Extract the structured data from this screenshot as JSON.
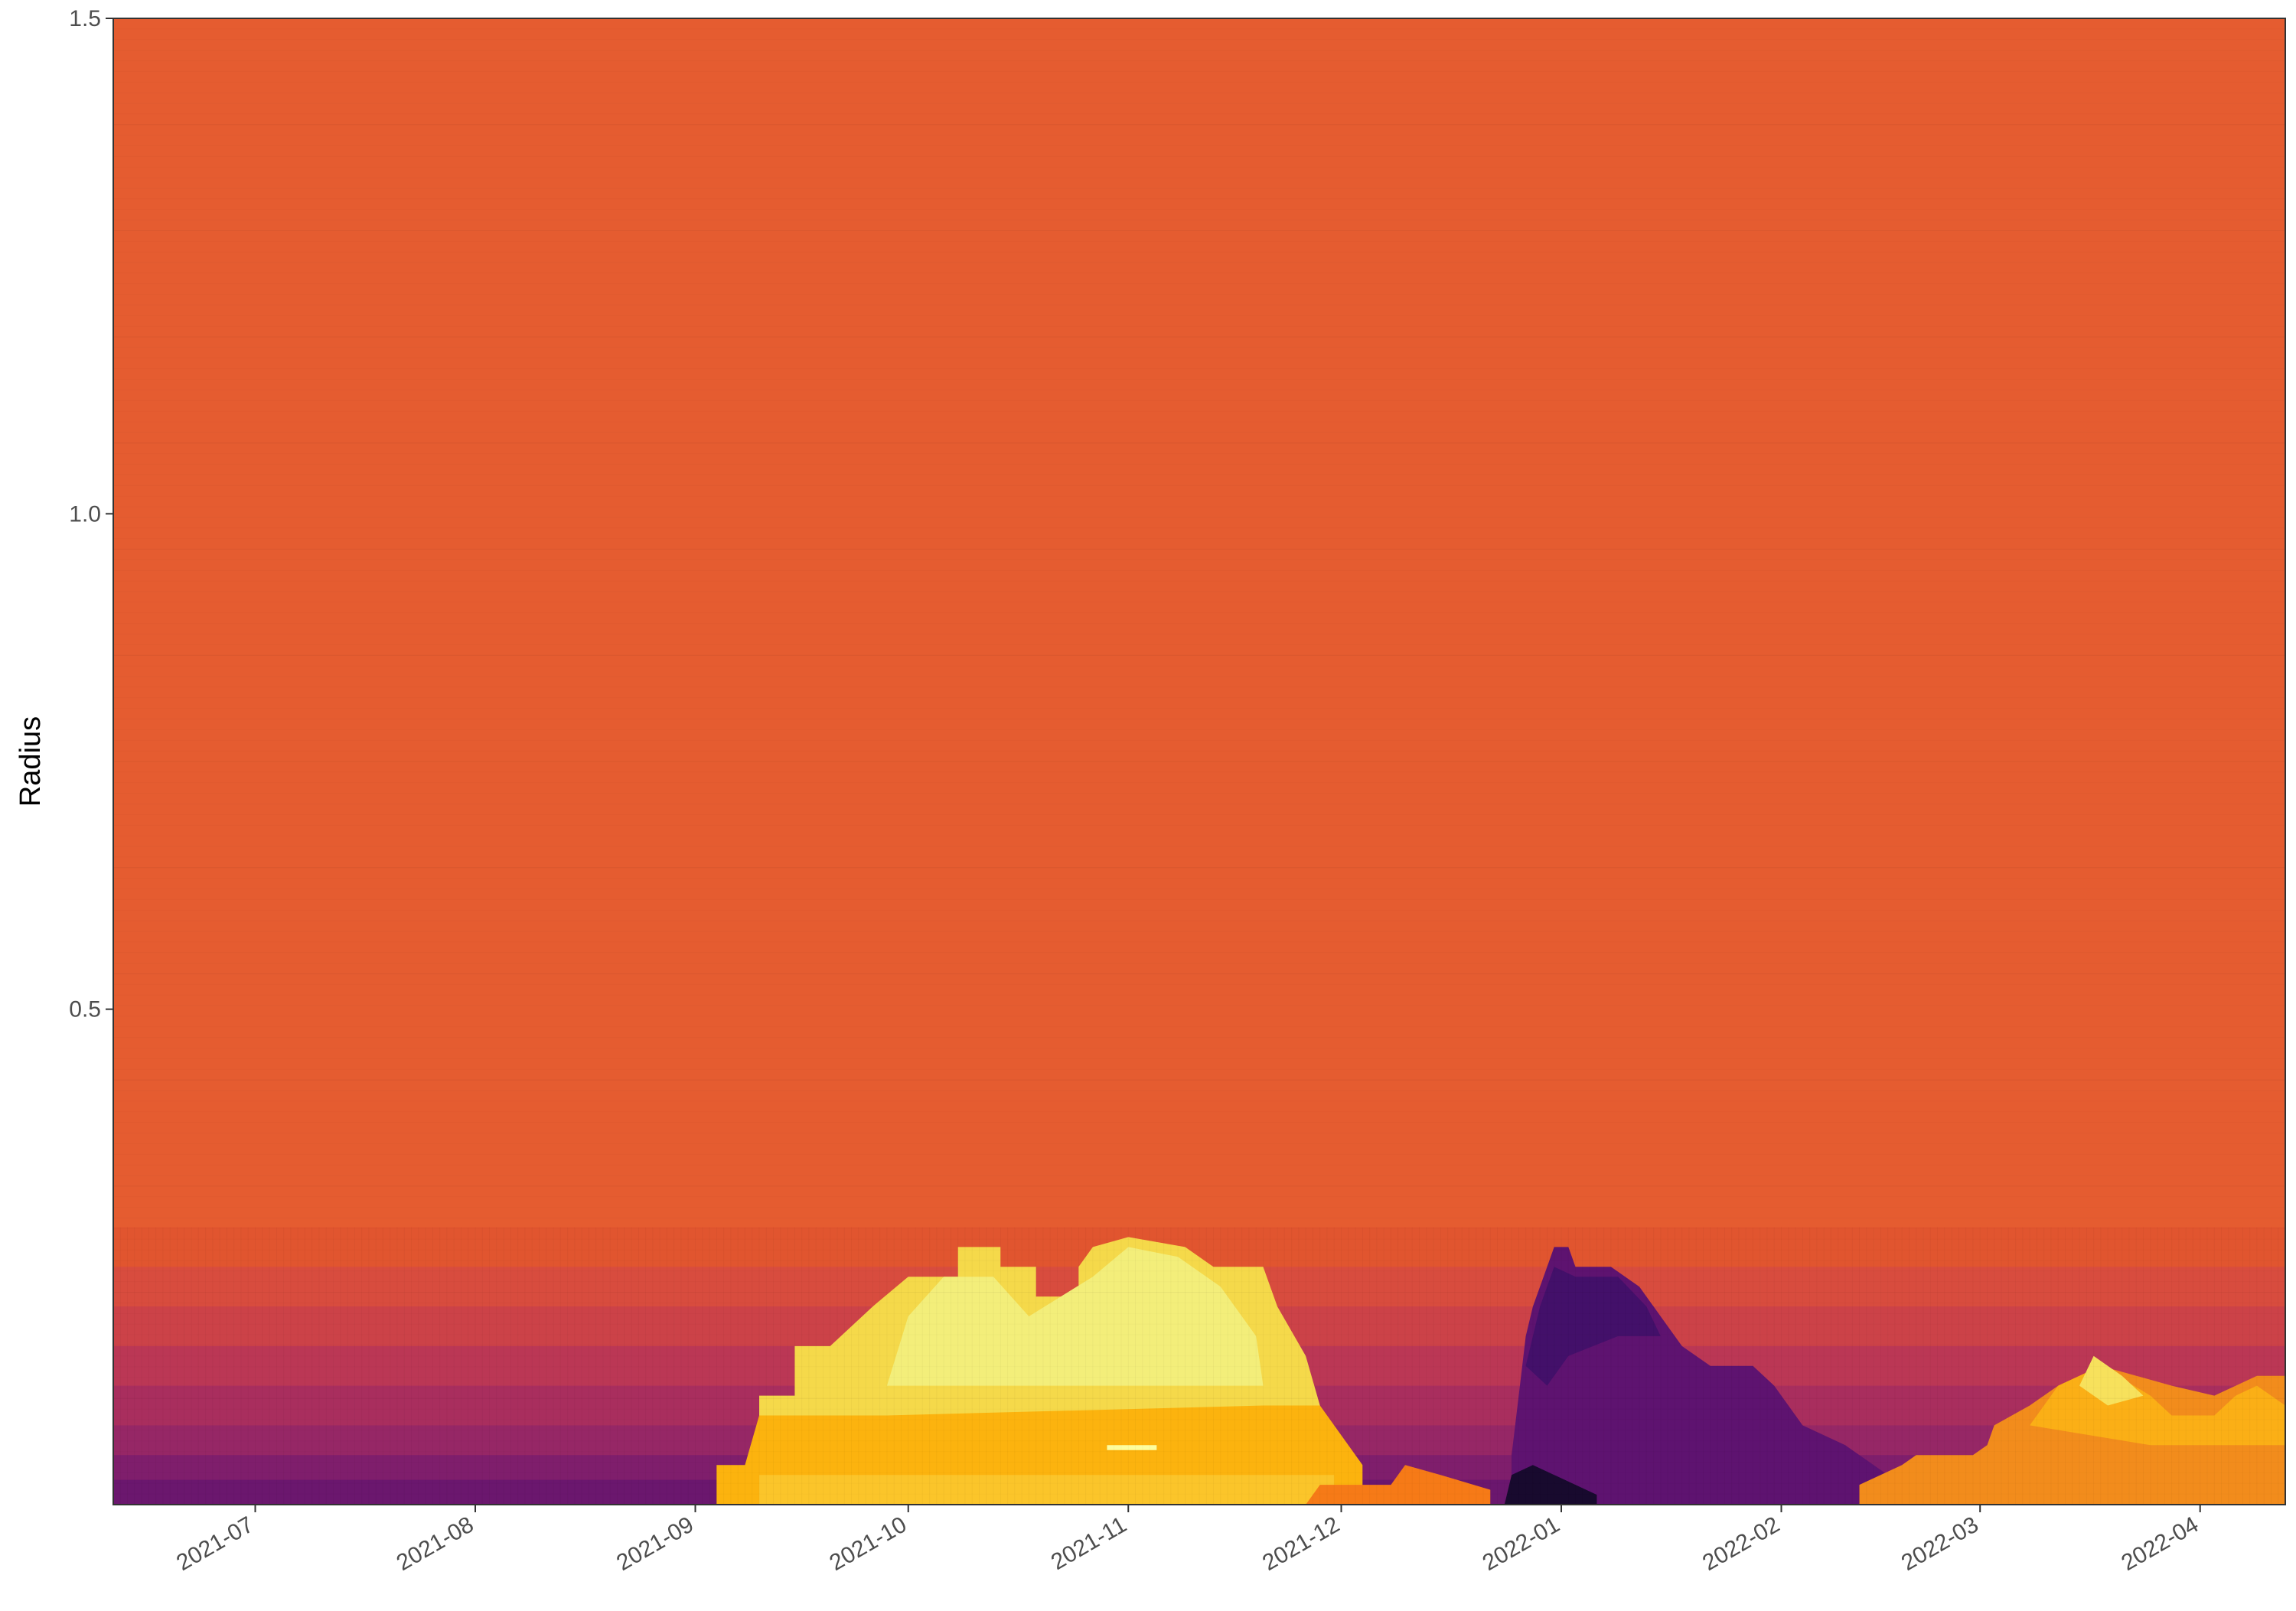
{
  "chart_data": {
    "type": "heatmap",
    "title": "",
    "xlabel": "",
    "ylabel": "Radius",
    "x_ticks": [
      "2021-07",
      "2021-08",
      "2021-09",
      "2021-10",
      "2021-11",
      "2021-12",
      "2022-01",
      "2022-02",
      "2022-03",
      "2022-04"
    ],
    "y_ticks": [
      "0.5",
      "1.0",
      "1.5"
    ],
    "xlim": [
      "2021-06-11",
      "2022-04-13"
    ],
    "ylim": [
      0.0,
      1.5
    ],
    "grid": false,
    "legend": "none",
    "palette": "inferno",
    "background_color": "#e55c30",
    "bands": [
      {
        "y_top": 0.28,
        "color": "#e1552f"
      },
      {
        "y_top": 0.24,
        "color": "#d84c3e"
      },
      {
        "y_top": 0.2,
        "color": "#cc4248"
      },
      {
        "y_top": 0.16,
        "color": "#bb3755"
      },
      {
        "y_top": 0.12,
        "color": "#a92e5e"
      },
      {
        "y_top": 0.08,
        "color": "#962766"
      },
      {
        "y_top": 0.05,
        "color": "#7f1e6c"
      },
      {
        "y_top": 0.025,
        "color": "#6b176e"
      }
    ],
    "blobs": [
      {
        "name": "autumn",
        "layers": [
          {
            "color": "#f5d94a",
            "points": [
              [
                "2021-09-10",
                0.0
              ],
              [
                "2021-09-10",
                0.11
              ],
              [
                "2021-09-15",
                0.11
              ],
              [
                "2021-09-15",
                0.16
              ],
              [
                "2021-09-20",
                0.16
              ],
              [
                "2021-09-26",
                0.2
              ],
              [
                "2021-10-01",
                0.23
              ],
              [
                "2021-10-08",
                0.23
              ],
              [
                "2021-10-08",
                0.26
              ],
              [
                "2021-10-14",
                0.26
              ],
              [
                "2021-10-14",
                0.24
              ],
              [
                "2021-10-19",
                0.24
              ],
              [
                "2021-10-19",
                0.21
              ],
              [
                "2021-10-25",
                0.21
              ],
              [
                "2021-10-25",
                0.24
              ],
              [
                "2021-10-27",
                0.26
              ],
              [
                "2021-11-01",
                0.27
              ],
              [
                "2021-11-09",
                0.26
              ],
              [
                "2021-11-13",
                0.24
              ],
              [
                "2021-11-20",
                0.24
              ],
              [
                "2021-11-22",
                0.2
              ],
              [
                "2021-11-26",
                0.15
              ],
              [
                "2021-11-28",
                0.1
              ],
              [
                "2021-11-28",
                0.0
              ]
            ]
          },
          {
            "color": "#f3ee7a",
            "points": [
              [
                "2021-09-28",
                0.12
              ],
              [
                "2021-10-01",
                0.19
              ],
              [
                "2021-10-06",
                0.23
              ],
              [
                "2021-10-13",
                0.23
              ],
              [
                "2021-10-18",
                0.19
              ],
              [
                "2021-10-27",
                0.23
              ],
              [
                "2021-11-01",
                0.26
              ],
              [
                "2021-11-08",
                0.25
              ],
              [
                "2021-11-14",
                0.22
              ],
              [
                "2021-11-19",
                0.17
              ],
              [
                "2021-11-20",
                0.12
              ]
            ]
          },
          {
            "color": "#fcb30e",
            "points": [
              [
                "2021-09-04",
                0.0
              ],
              [
                "2021-09-04",
                0.04
              ],
              [
                "2021-09-08",
                0.04
              ],
              [
                "2021-09-10",
                0.09
              ],
              [
                "2021-09-28",
                0.09
              ],
              [
                "2021-11-20",
                0.1
              ],
              [
                "2021-11-28",
                0.1
              ],
              [
                "2021-12-04",
                0.04
              ],
              [
                "2021-12-04",
                0.0
              ]
            ]
          },
          {
            "color": "#fbc52a",
            "points": [
              [
                "2021-09-10",
                0.0
              ],
              [
                "2021-09-10",
                0.03
              ],
              [
                "2021-11-30",
                0.03
              ],
              [
                "2021-11-30",
                0.0
              ]
            ]
          },
          {
            "color": "#fdfd9e",
            "points": [
              [
                "2021-10-29",
                0.055
              ],
              [
                "2021-10-29",
                0.06
              ],
              [
                "2021-11-05",
                0.06
              ],
              [
                "2021-11-05",
                0.055
              ]
            ]
          },
          {
            "color": "#f67a17",
            "points": [
              [
                "2021-11-26",
                0.0
              ],
              [
                "2021-11-28",
                0.02
              ],
              [
                "2021-12-08",
                0.02
              ],
              [
                "2021-12-10",
                0.04
              ],
              [
                "2021-12-15",
                0.03
              ],
              [
                "2021-12-22",
                0.015
              ],
              [
                "2021-12-22",
                0.0
              ]
            ]
          }
        ]
      },
      {
        "name": "winter",
        "layers": [
          {
            "color": "#5e1370",
            "points": [
              [
                "2021-12-25",
                0.0
              ],
              [
                "2021-12-25",
                0.05
              ],
              [
                "2021-12-26",
                0.11
              ],
              [
                "2021-12-27",
                0.17
              ],
              [
                "2021-12-28",
                0.2
              ],
              [
                "2021-12-29",
                0.22
              ],
              [
                "2021-12-30",
                0.24
              ],
              [
                "2021-12-31",
                0.26
              ],
              [
                "2022-01-02",
                0.26
              ],
              [
                "2022-01-03",
                0.24
              ],
              [
                "2022-01-08",
                0.24
              ],
              [
                "2022-01-12",
                0.22
              ],
              [
                "2022-01-15",
                0.19
              ],
              [
                "2022-01-18",
                0.16
              ],
              [
                "2022-01-22",
                0.14
              ],
              [
                "2022-01-28",
                0.14
              ],
              [
                "2022-01-31",
                0.12
              ],
              [
                "2022-02-04",
                0.08
              ],
              [
                "2022-02-10",
                0.06
              ],
              [
                "2022-02-16",
                0.03
              ],
              [
                "2022-02-16",
                0.0
              ]
            ]
          },
          {
            "color": "#43106a",
            "points": [
              [
                "2021-12-27",
                0.14
              ],
              [
                "2021-12-29",
                0.2
              ],
              [
                "2021-12-31",
                0.24
              ],
              [
                "2022-01-03",
                0.23
              ],
              [
                "2022-01-09",
                0.23
              ],
              [
                "2022-01-13",
                0.2
              ],
              [
                "2022-01-15",
                0.17
              ],
              [
                "2022-01-09",
                0.17
              ],
              [
                "2022-01-02",
                0.15
              ],
              [
                "2021-12-30",
                0.12
              ]
            ]
          },
          {
            "color": "#180a2e",
            "points": [
              [
                "2021-12-24",
                0.0
              ],
              [
                "2021-12-25",
                0.03
              ],
              [
                "2021-12-28",
                0.04
              ],
              [
                "2021-12-31",
                0.03
              ],
              [
                "2022-01-03",
                0.02
              ],
              [
                "2022-01-06",
                0.01
              ],
              [
                "2022-01-06",
                0.0
              ]
            ]
          }
        ]
      },
      {
        "name": "spring",
        "layers": [
          {
            "color": "#f28c1c",
            "points": [
              [
                "2022-02-12",
                0.0
              ],
              [
                "2022-02-12",
                0.02
              ],
              [
                "2022-02-18",
                0.04
              ],
              [
                "2022-02-20",
                0.05
              ],
              [
                "2022-02-28",
                0.05
              ],
              [
                "2022-03-02",
                0.06
              ],
              [
                "2022-03-03",
                0.08
              ],
              [
                "2022-03-08",
                0.1
              ],
              [
                "2022-03-12",
                0.12
              ],
              [
                "2022-03-18",
                0.14
              ],
              [
                "2022-03-28",
                0.12
              ],
              [
                "2022-04-03",
                0.11
              ],
              [
                "2022-04-09",
                0.13
              ],
              [
                "2022-04-13",
                0.13
              ],
              [
                "2022-04-13",
                0.0
              ]
            ]
          },
          {
            "color": "#fbaf16",
            "points": [
              [
                "2022-03-08",
                0.08
              ],
              [
                "2022-03-12",
                0.12
              ],
              [
                "2022-03-18",
                0.14
              ],
              [
                "2022-03-25",
                0.11
              ],
              [
                "2022-03-28",
                0.09
              ],
              [
                "2022-04-03",
                0.09
              ],
              [
                "2022-04-06",
                0.11
              ],
              [
                "2022-04-09",
                0.12
              ],
              [
                "2022-04-13",
                0.1
              ],
              [
                "2022-04-13",
                0.06
              ],
              [
                "2022-03-25",
                0.06
              ]
            ]
          },
          {
            "color": "#f7e15c",
            "points": [
              [
                "2022-03-15",
                0.12
              ],
              [
                "2022-03-17",
                0.15
              ],
              [
                "2022-03-21",
                0.13
              ],
              [
                "2022-03-24",
                0.11
              ],
              [
                "2022-03-19",
                0.1
              ]
            ]
          }
        ]
      }
    ]
  }
}
